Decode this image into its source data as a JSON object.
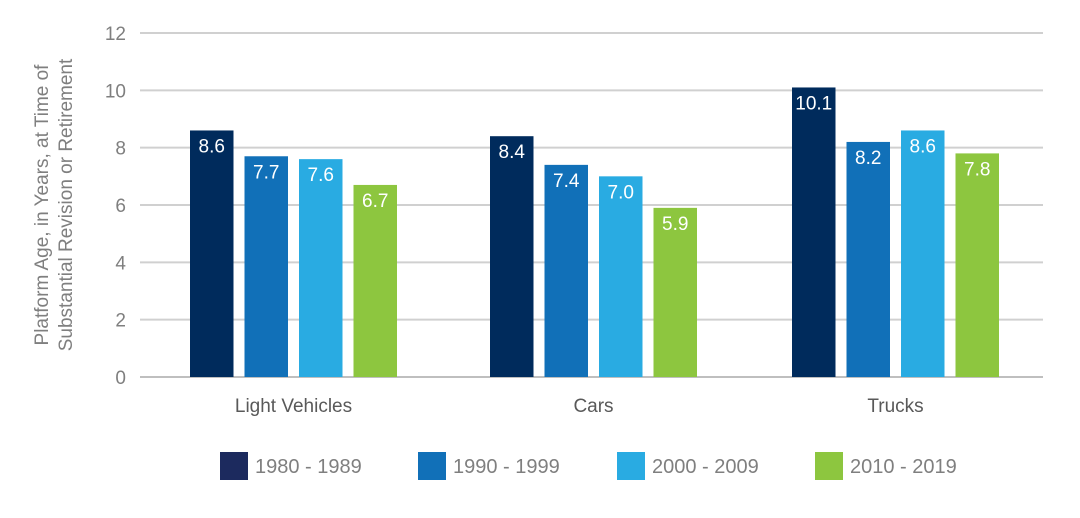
{
  "chart_data": {
    "type": "bar",
    "title": "",
    "xlabel": "",
    "ylabel": "Platform Age, in Years, at Time of Substantial Revision or Retirement",
    "ylabel_lines": [
      "Platform Age, in Years, at Time of",
      "Substantial Revision or Retirement"
    ],
    "ylim": [
      0,
      12
    ],
    "yticks": [
      0,
      2,
      4,
      6,
      8,
      10,
      12
    ],
    "grid": true,
    "legend_position": "bottom",
    "categories": [
      "Light Vehicles",
      "Cars",
      "Trucks"
    ],
    "series": [
      {
        "name": "1980 - 1989",
        "color": "#002b5c",
        "legend_color": "#1c2a5e",
        "values": [
          8.6,
          8.4,
          10.1
        ],
        "labels": [
          "8.6",
          "8.4",
          "10.1"
        ]
      },
      {
        "name": "1990 - 1999",
        "color": "#1170b8",
        "legend_color": "#1170b8",
        "values": [
          7.7,
          7.4,
          8.2
        ],
        "labels": [
          "7.7",
          "7.4",
          "8.2"
        ]
      },
      {
        "name": "2000 - 2009",
        "color": "#29abe2",
        "legend_color": "#29abe2",
        "values": [
          7.6,
          7.0,
          8.6
        ],
        "labels": [
          "7.6",
          "7.0",
          "8.6"
        ]
      },
      {
        "name": "2010 - 2019",
        "color": "#8dc63f",
        "legend_color": "#8dc63f",
        "values": [
          6.7,
          5.9,
          7.8
        ],
        "labels": [
          "6.7",
          "5.9",
          "7.8"
        ]
      }
    ]
  }
}
